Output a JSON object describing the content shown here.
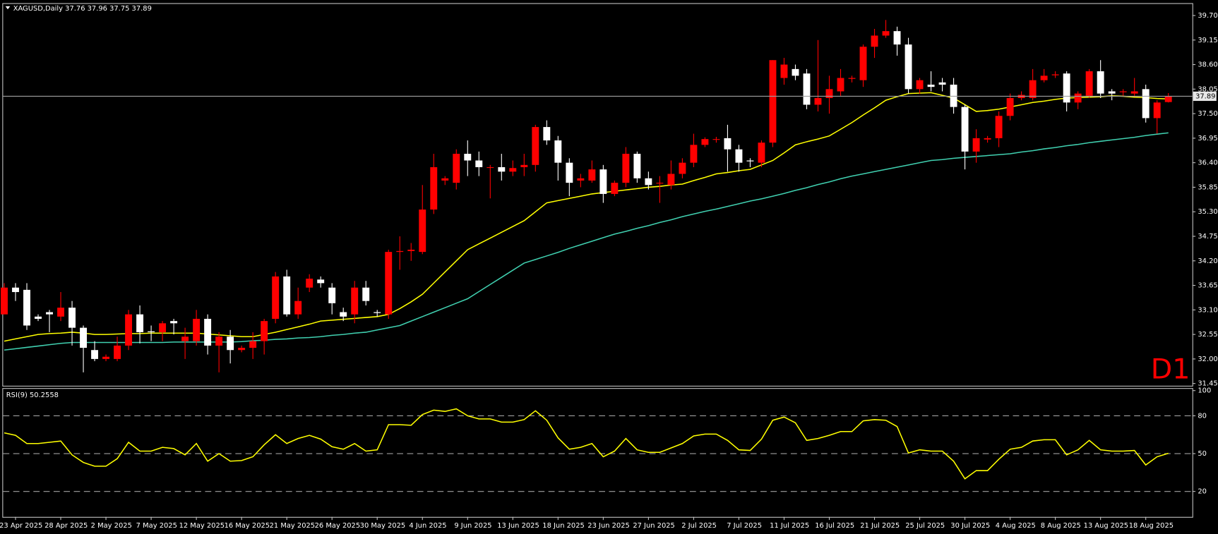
{
  "chart_data": [
    {
      "type": "candlestick",
      "title": "XAGUSD,Daily 37.76 37.96 37.75 37.89",
      "annotation": "D1",
      "last_price": 37.89,
      "up_color": "#ff0000",
      "down_color": "#ffffff",
      "categories": [
        null,
        "23 Apr 2025",
        null,
        null,
        null,
        "28 Apr 2025",
        null,
        null,
        null,
        "2 May 2025",
        null,
        null,
        null,
        "7 May 2025",
        null,
        null,
        null,
        "12 May 2025",
        null,
        null,
        null,
        "16 May 2025",
        null,
        null,
        null,
        "21 May 2025",
        null,
        null,
        null,
        "26 May 2025",
        null,
        null,
        null,
        "30 May 2025",
        null,
        null,
        null,
        "4 Jun 2025",
        null,
        null,
        null,
        "9 Jun 2025",
        null,
        null,
        null,
        "13 Jun 2025",
        null,
        null,
        null,
        "18 Jun 2025",
        null,
        null,
        null,
        "23 Jun 2025",
        null,
        null,
        null,
        "27 Jun 2025",
        null,
        null,
        null,
        "2 Jul 2025",
        null,
        null,
        null,
        "7 Jul 2025",
        null,
        null,
        null,
        "11 Jul 2025",
        null,
        null,
        null,
        "16 Jul 2025",
        null,
        null,
        null,
        "21 Jul 2025",
        null,
        null,
        null,
        "25 Jul 2025",
        null,
        null,
        null,
        "30 Jul 2025",
        null,
        null,
        null,
        "4 Aug 2025",
        null,
        null,
        null,
        "8 Aug 2025",
        null,
        null,
        null,
        "13 Aug 2025",
        null,
        null,
        null,
        "18 Aug 2025",
        null,
        null
      ],
      "open": [
        33.0,
        33.6,
        33.55,
        32.95,
        33.05,
        32.95,
        33.15,
        32.7,
        32.2,
        32.0,
        32.0,
        32.3,
        33.0,
        32.62,
        32.6,
        32.85,
        32.4,
        32.4,
        32.9,
        32.3,
        32.5,
        32.2,
        32.25,
        32.4,
        32.9,
        33.85,
        33.0,
        33.6,
        33.78,
        33.6,
        33.05,
        33.0,
        33.6,
        33.05,
        33.0,
        34.4,
        34.42,
        34.4,
        35.35,
        36.0,
        35.95,
        36.6,
        36.45,
        36.3,
        36.3,
        36.2,
        36.3,
        36.35,
        37.2,
        36.9,
        36.4,
        36.0,
        36.0,
        36.25,
        35.7,
        35.95,
        36.6,
        36.05,
        35.95,
        35.9,
        36.15,
        36.4,
        36.8,
        36.92,
        36.95,
        36.7,
        36.45,
        36.4,
        36.85,
        38.3,
        38.5,
        38.4,
        37.7,
        37.85,
        38.0,
        38.28,
        38.25,
        39.0,
        39.25,
        39.35,
        39.05,
        38.05,
        38.15,
        38.2,
        38.15,
        37.65,
        36.65,
        36.92,
        36.95,
        37.45,
        37.85,
        37.85,
        38.25,
        38.36,
        38.4,
        37.75,
        37.9,
        38.45,
        38.0,
        37.98,
        37.95,
        38.05,
        37.4,
        37.76
      ],
      "high": [
        33.7,
        33.7,
        33.7,
        33.0,
        33.1,
        33.5,
        33.3,
        32.75,
        32.4,
        32.1,
        32.5,
        33.1,
        33.2,
        32.75,
        32.85,
        32.9,
        32.7,
        33.1,
        33.0,
        32.6,
        32.65,
        32.3,
        32.6,
        32.9,
        33.95,
        34.0,
        33.6,
        33.9,
        33.85,
        33.7,
        33.15,
        33.75,
        33.75,
        33.1,
        34.45,
        34.75,
        34.6,
        35.9,
        36.6,
        36.1,
        36.7,
        36.9,
        36.65,
        36.35,
        36.6,
        36.45,
        36.6,
        37.25,
        37.35,
        37.0,
        36.5,
        36.15,
        36.45,
        36.35,
        36.0,
        36.75,
        36.65,
        36.2,
        36.1,
        36.45,
        36.5,
        37.05,
        36.97,
        36.98,
        37.25,
        36.8,
        36.5,
        36.9,
        38.7,
        38.75,
        38.6,
        38.5,
        39.15,
        38.35,
        38.5,
        38.35,
        39.05,
        39.4,
        39.6,
        39.45,
        39.2,
        38.3,
        38.45,
        38.3,
        38.3,
        37.7,
        37.15,
        37.0,
        37.55,
        37.95,
        38.0,
        38.5,
        38.5,
        38.45,
        38.45,
        38.0,
        38.5,
        38.7,
        38.05,
        38.05,
        38.3,
        38.15,
        37.8,
        37.96
      ],
      "low": [
        33.0,
        33.3,
        32.65,
        32.85,
        32.6,
        32.85,
        32.3,
        31.7,
        31.95,
        31.95,
        31.95,
        32.2,
        32.35,
        32.4,
        32.4,
        32.55,
        32.0,
        32.3,
        32.1,
        31.7,
        31.9,
        32.15,
        32.0,
        32.1,
        32.8,
        32.95,
        32.9,
        33.5,
        33.6,
        33.0,
        32.85,
        32.8,
        33.2,
        32.95,
        32.9,
        34.0,
        34.2,
        34.35,
        35.25,
        35.9,
        35.8,
        36.1,
        36.1,
        35.6,
        36.0,
        36.1,
        36.1,
        36.2,
        36.8,
        36.0,
        35.65,
        35.85,
        35.95,
        35.5,
        35.65,
        35.85,
        35.95,
        35.8,
        35.5,
        35.8,
        36.05,
        36.3,
        36.75,
        36.85,
        36.2,
        36.2,
        36.3,
        36.3,
        36.75,
        38.15,
        38.25,
        37.6,
        37.55,
        37.5,
        37.9,
        38.2,
        38.1,
        38.75,
        39.2,
        38.8,
        37.95,
        37.95,
        38.0,
        38.0,
        37.5,
        36.25,
        36.4,
        36.85,
        36.75,
        37.35,
        37.8,
        37.8,
        38.2,
        38.3,
        37.55,
        37.6,
        37.85,
        37.85,
        37.8,
        37.9,
        37.9,
        37.3,
        37.05,
        37.75
      ],
      "close": [
        33.6,
        33.5,
        32.75,
        32.9,
        33.0,
        33.15,
        32.7,
        32.25,
        32.0,
        32.05,
        32.3,
        33.0,
        32.6,
        32.6,
        32.8,
        32.8,
        32.5,
        32.9,
        32.3,
        32.5,
        32.2,
        32.25,
        32.4,
        32.85,
        33.85,
        33.0,
        33.3,
        33.8,
        33.7,
        33.25,
        32.95,
        33.6,
        33.3,
        33.03,
        34.4,
        34.42,
        34.45,
        35.35,
        36.3,
        36.05,
        36.6,
        36.45,
        36.3,
        36.3,
        36.2,
        36.28,
        36.35,
        37.2,
        36.9,
        36.4,
        35.95,
        36.05,
        36.25,
        35.7,
        35.95,
        36.6,
        36.05,
        35.9,
        35.95,
        36.15,
        36.4,
        36.8,
        36.93,
        36.93,
        36.7,
        36.4,
        36.43,
        36.85,
        38.7,
        38.6,
        38.35,
        37.7,
        37.85,
        38.05,
        38.3,
        38.3,
        39.0,
        39.25,
        39.35,
        39.05,
        38.05,
        38.25,
        38.1,
        38.15,
        37.65,
        36.65,
        36.95,
        36.95,
        37.45,
        37.85,
        37.92,
        38.25,
        38.35,
        38.38,
        37.75,
        37.95,
        38.45,
        37.95,
        37.95,
        38.0,
        38.0,
        37.4,
        37.75,
        37.89
      ],
      "lines": [
        {
          "color": "#ffff00",
          "values": [
            32.4,
            32.45,
            32.5,
            32.55,
            32.57,
            32.58,
            32.6,
            32.58,
            32.55,
            32.55,
            32.56,
            32.57,
            32.57,
            32.58,
            32.58,
            32.58,
            32.58,
            32.58,
            32.56,
            32.54,
            32.52,
            32.5,
            32.5,
            32.55,
            32.6,
            32.66,
            32.72,
            32.78,
            32.85,
            32.87,
            32.89,
            32.91,
            32.93,
            32.95,
            33.0,
            33.13,
            33.28,
            33.45,
            33.7,
            33.95,
            34.2,
            34.45,
            34.58,
            34.71,
            34.84,
            34.97,
            35.1,
            35.3,
            35.5,
            35.55,
            35.6,
            35.65,
            35.7,
            35.73,
            35.76,
            35.79,
            35.82,
            35.85,
            35.87,
            35.9,
            35.92,
            36.0,
            36.07,
            36.15,
            36.18,
            36.22,
            36.25,
            36.35,
            36.45,
            36.62,
            36.8,
            36.87,
            36.93,
            37.0,
            37.15,
            37.3,
            37.47,
            37.63,
            37.8,
            37.88,
            37.95,
            37.96,
            37.97,
            37.91,
            37.85,
            37.7,
            37.55,
            37.57,
            37.6,
            37.65,
            37.7,
            37.75,
            37.78,
            37.82,
            37.85,
            37.86,
            37.87,
            37.88,
            37.9,
            37.89,
            37.87,
            37.86,
            37.84,
            37.83
          ]
        },
        {
          "color": "#40d0b0",
          "values": [
            32.2,
            32.23,
            32.26,
            32.29,
            32.32,
            32.35,
            32.37,
            32.37,
            32.37,
            32.37,
            32.37,
            32.37,
            32.37,
            32.37,
            32.37,
            32.38,
            32.38,
            32.38,
            32.38,
            32.38,
            32.38,
            32.39,
            32.41,
            32.42,
            32.44,
            32.45,
            32.47,
            32.48,
            32.5,
            32.53,
            32.55,
            32.58,
            32.6,
            32.65,
            32.7,
            32.75,
            32.85,
            32.95,
            33.05,
            33.15,
            33.25,
            33.35,
            33.51,
            33.67,
            33.83,
            33.99,
            34.15,
            34.23,
            34.31,
            34.39,
            34.48,
            34.56,
            34.64,
            34.72,
            34.8,
            34.86,
            34.93,
            34.99,
            35.06,
            35.12,
            35.19,
            35.25,
            35.31,
            35.36,
            35.42,
            35.48,
            35.54,
            35.59,
            35.65,
            35.71,
            35.78,
            35.84,
            35.91,
            35.97,
            36.04,
            36.1,
            36.15,
            36.2,
            36.25,
            36.3,
            36.35,
            36.4,
            36.45,
            36.47,
            36.5,
            36.52,
            36.54,
            36.56,
            36.58,
            36.6,
            36.64,
            36.67,
            36.71,
            36.74,
            36.78,
            36.81,
            36.85,
            36.88,
            36.91,
            36.94,
            36.97,
            37.01,
            37.04,
            37.07
          ]
        }
      ],
      "ylim": [
        31.4,
        39.96
      ],
      "yticks": [
        31.45,
        {
          "value": 32.0,
          "label": "32.00"
        },
        32.55,
        {
          "value": 33.1,
          "label": "33.10"
        },
        33.65,
        {
          "value": 34.2,
          "label": "34.20"
        },
        34.75,
        {
          "value": 35.3,
          "label": "35.30"
        },
        35.85,
        {
          "value": 36.4,
          "label": "36.40"
        },
        36.95,
        {
          "value": 37.5,
          "label": "37.50"
        },
        38.05,
        {
          "value": 38.6,
          "label": "38.60"
        },
        39.15,
        {
          "value": 39.7,
          "label": "39.70"
        }
      ]
    },
    {
      "type": "line",
      "title": "RSI(9) 50.2558",
      "series": [
        {
          "color": "#ffff00",
          "values": [
            66.5,
            64.5,
            58,
            58,
            59,
            60,
            49,
            43,
            40,
            40,
            46,
            59,
            52,
            52,
            55,
            54,
            49,
            58,
            44,
            50,
            44,
            44.5,
            47.5,
            57,
            65,
            58,
            62,
            64.5,
            61.5,
            55.5,
            53.5,
            58,
            52,
            53,
            73,
            73,
            72.5,
            81,
            84.5,
            83.5,
            85.5,
            80,
            77.5,
            77.5,
            75,
            75,
            77,
            84,
            76.5,
            62.5,
            53.5,
            55,
            58,
            47.5,
            52,
            62,
            53,
            51,
            51,
            54.5,
            58,
            64,
            65.5,
            65.5,
            60.5,
            53,
            52.5,
            61.5,
            76.5,
            79,
            74.5,
            60.5,
            62,
            64.5,
            67.5,
            67.5,
            76,
            77,
            76.5,
            71.5,
            50.5,
            53,
            52,
            52,
            44,
            30,
            36.5,
            36.5,
            45.5,
            53.5,
            55,
            60,
            61,
            61,
            49,
            53,
            60.5,
            53,
            52,
            52,
            52.5,
            41,
            47.5,
            50.2558
          ]
        }
      ],
      "levels": [
        80,
        50,
        20
      ],
      "ylim": [
        -0.2,
        101.4
      ],
      "yticks": [
        100,
        80,
        50,
        20
      ]
    }
  ]
}
